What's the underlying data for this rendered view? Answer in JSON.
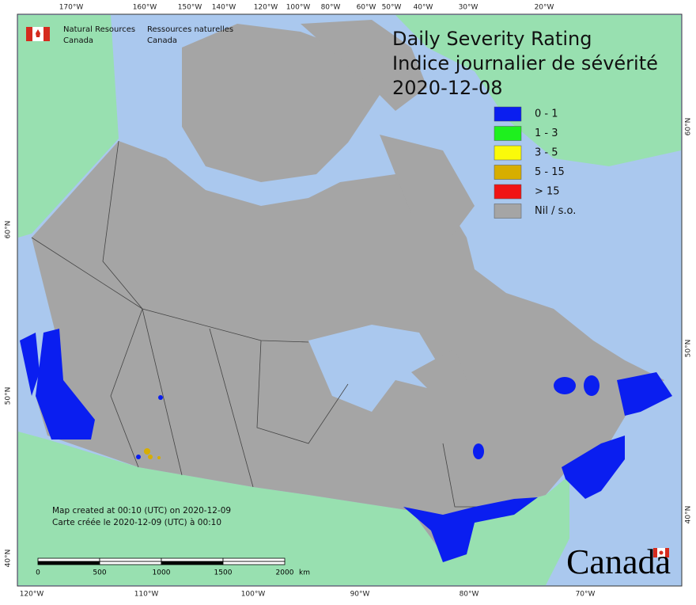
{
  "agency": {
    "english": [
      "Natural Resources",
      "Canada"
    ],
    "french": [
      "Ressources naturelles",
      "Canada"
    ]
  },
  "title": [
    "Daily Severity Rating",
    "Indice journalier de sévérité",
    "2020-12-08"
  ],
  "legend": [
    {
      "label": "0 - 1",
      "color": "#0a1ef0"
    },
    {
      "label": "1 - 3",
      "color": "#1ef01e"
    },
    {
      "label": "3 - 5",
      "color": "#fafa0a"
    },
    {
      "label": "5 - 15",
      "color": "#d7ae00"
    },
    {
      "label": "> 15",
      "color": "#f01414"
    },
    {
      "label": "Nil / s.o.",
      "color": "#a5a5a5"
    }
  ],
  "graticule": {
    "top": [
      "170°W",
      "160°W",
      "150°W",
      "140°W",
      "120°W",
      "100°W",
      "80°W",
      "60°W",
      "50°W",
      "40°W",
      "30°W",
      "20°W"
    ],
    "bottom": [
      "120°W",
      "110°W",
      "100°W",
      "90°W",
      "80°W",
      "70°W"
    ],
    "left": [
      "60°N",
      "50°N",
      "40°N"
    ],
    "right": [
      "60°N",
      "50°N",
      "40°N"
    ]
  },
  "note": [
    "Map created at 00:10 (UTC) on 2020-12-09",
    "Carte créée le 2020-12-09 (UTC) à 00:10"
  ],
  "scale_bar": {
    "ticks": [
      "0",
      "500",
      "1000",
      "1500",
      "2000"
    ],
    "unit": "km"
  },
  "wordmark": "Canada"
}
